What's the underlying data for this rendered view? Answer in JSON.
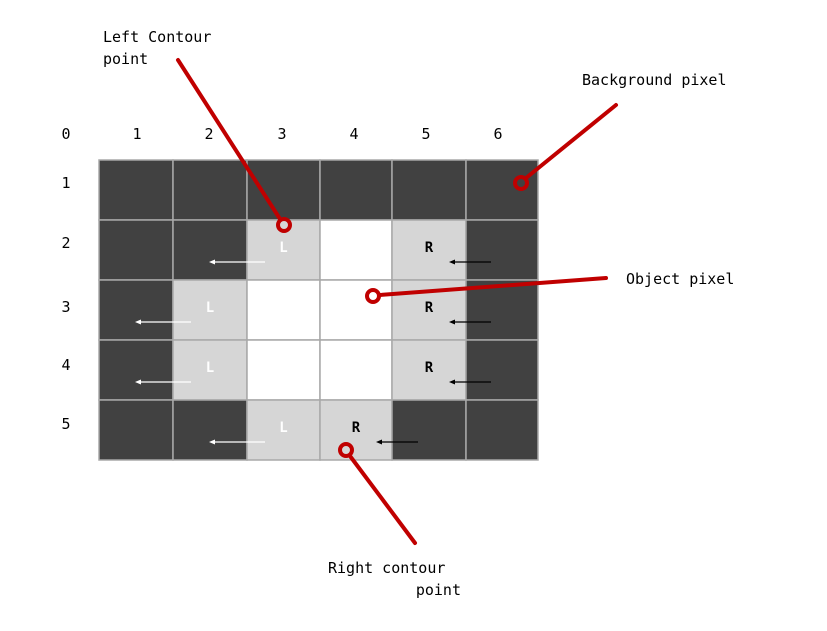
{
  "colors": {
    "background": "#414141",
    "contour": "#d6d6d6",
    "object": "#ffffff",
    "grid_line": "#a8a8a8",
    "annotation": "#c00000",
    "label_light": "#ffffff",
    "label_dark": "#000000"
  },
  "column_labels": [
    "0",
    "1",
    "2",
    "3",
    "4",
    "5",
    "6"
  ],
  "row_labels": [
    "1",
    "2",
    "3",
    "4",
    "5"
  ],
  "grid": [
    [
      "B",
      "B",
      "B",
      "B",
      "B",
      "B"
    ],
    [
      "B",
      "B",
      "C",
      "O",
      "C",
      "B"
    ],
    [
      "B",
      "C",
      "O",
      "O",
      "C",
      "B"
    ],
    [
      "B",
      "C",
      "O",
      "O",
      "C",
      "B"
    ],
    [
      "B",
      "B",
      "C",
      "C",
      "B",
      "B"
    ]
  ],
  "left_points": [
    {
      "row": 2,
      "col": 3,
      "letter": "L"
    },
    {
      "row": 3,
      "col": 2,
      "letter": "L"
    },
    {
      "row": 4,
      "col": 2,
      "letter": "L"
    },
    {
      "row": 5,
      "col": 3,
      "letter": "L"
    }
  ],
  "right_points": [
    {
      "row": 2,
      "col": 5,
      "letter": "R"
    },
    {
      "row": 3,
      "col": 5,
      "letter": "R"
    },
    {
      "row": 4,
      "col": 5,
      "letter": "R"
    },
    {
      "row": 5,
      "col": 4,
      "letter": "R"
    }
  ],
  "callouts": {
    "left_contour": [
      "Left Contour",
      "point"
    ],
    "background": "Background pixel",
    "object": "Object pixel",
    "right_contour": [
      "Right contour",
      "point"
    ]
  }
}
